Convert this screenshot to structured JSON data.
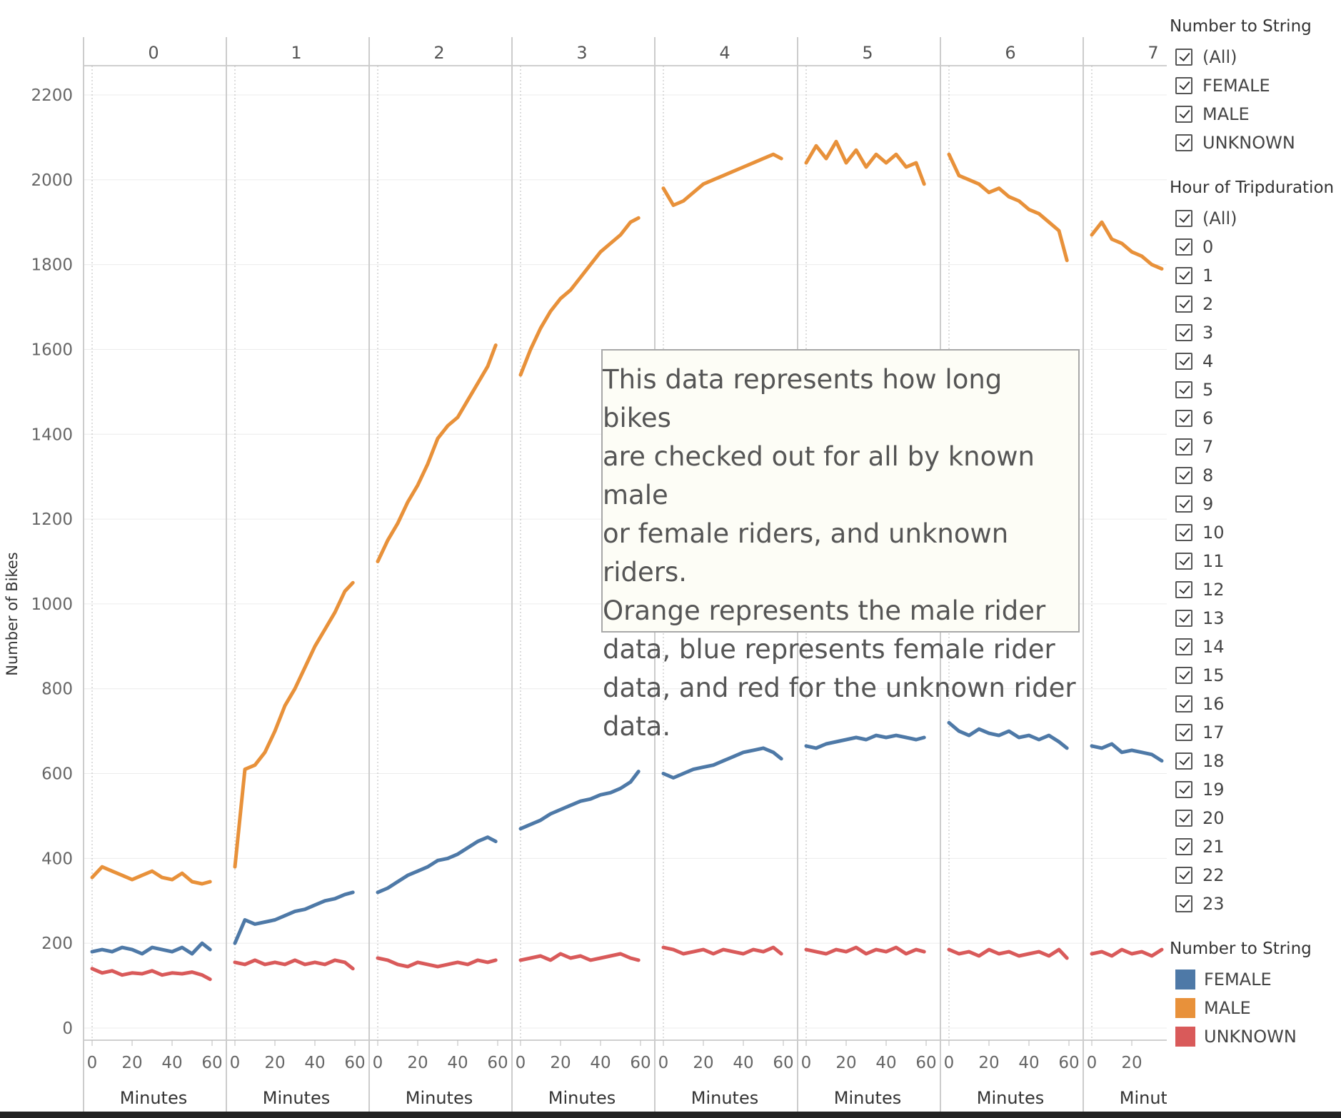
{
  "chart_data": {
    "type": "line",
    "ylabel": "Number of Bikes",
    "xlabel": "Minutes",
    "ylim": [
      0,
      2300
    ],
    "y_ticks": [
      0,
      200,
      400,
      600,
      800,
      1000,
      1200,
      1400,
      1600,
      1800,
      2000,
      2200
    ],
    "x_ticks": [
      0,
      20,
      40,
      60
    ],
    "facet_labels": [
      "0",
      "1",
      "2",
      "3",
      "4",
      "5",
      "6",
      "7"
    ],
    "x_minutes": [
      0,
      5,
      10,
      15,
      20,
      25,
      30,
      35,
      40,
      45,
      50,
      55,
      59
    ],
    "series": [
      {
        "name": "MALE",
        "color": "#E8913A",
        "values_by_hour": [
          [
            355,
            380,
            370,
            360,
            350,
            360,
            370,
            355,
            350,
            365,
            345,
            340,
            345
          ],
          [
            380,
            610,
            620,
            650,
            700,
            760,
            800,
            850,
            900,
            940,
            980,
            1030,
            1050
          ],
          [
            1100,
            1150,
            1190,
            1240,
            1280,
            1330,
            1390,
            1420,
            1440,
            1480,
            1520,
            1560,
            1610
          ],
          [
            1540,
            1600,
            1650,
            1690,
            1720,
            1740,
            1770,
            1800,
            1830,
            1850,
            1870,
            1900,
            1910
          ],
          [
            1980,
            1940,
            1950,
            1970,
            1990,
            2000,
            2010,
            2020,
            2030,
            2040,
            2050,
            2060,
            2050
          ],
          [
            2040,
            2080,
            2050,
            2090,
            2040,
            2070,
            2030,
            2060,
            2040,
            2060,
            2030,
            2040,
            1990
          ],
          [
            2060,
            2010,
            2000,
            1990,
            1970,
            1980,
            1960,
            1950,
            1930,
            1920,
            1900,
            1880,
            1810
          ],
          [
            1870,
            1900,
            1860,
            1850,
            1830,
            1820,
            1800,
            1790
          ]
        ]
      },
      {
        "name": "FEMALE",
        "color": "#4E79A7",
        "values_by_hour": [
          [
            180,
            185,
            180,
            190,
            185,
            175,
            190,
            185,
            180,
            190,
            175,
            200,
            185
          ],
          [
            200,
            255,
            245,
            250,
            255,
            265,
            275,
            280,
            290,
            300,
            305,
            315,
            320
          ],
          [
            320,
            330,
            345,
            360,
            370,
            380,
            395,
            400,
            410,
            425,
            440,
            450,
            440
          ],
          [
            470,
            480,
            490,
            505,
            515,
            525,
            535,
            540,
            550,
            555,
            565,
            580,
            605
          ],
          [
            600,
            590,
            600,
            610,
            615,
            620,
            630,
            640,
            650,
            655,
            660,
            650,
            635
          ],
          [
            665,
            660,
            670,
            675,
            680,
            685,
            680,
            690,
            685,
            690,
            685,
            680,
            685
          ],
          [
            720,
            700,
            690,
            705,
            695,
            690,
            700,
            685,
            690,
            680,
            690,
            675,
            660
          ],
          [
            665,
            660,
            670,
            650,
            655,
            650,
            645,
            630
          ]
        ]
      },
      {
        "name": "UNKNOWN",
        "color": "#D95A5A",
        "values_by_hour": [
          [
            140,
            130,
            135,
            125,
            130,
            128,
            135,
            125,
            130,
            128,
            132,
            125,
            115
          ],
          [
            155,
            150,
            160,
            150,
            155,
            150,
            160,
            150,
            155,
            150,
            160,
            155,
            140
          ],
          [
            165,
            160,
            150,
            145,
            155,
            150,
            145,
            150,
            155,
            150,
            160,
            155,
            160
          ],
          [
            160,
            165,
            170,
            160,
            175,
            165,
            170,
            160,
            165,
            170,
            175,
            165,
            160
          ],
          [
            190,
            185,
            175,
            180,
            185,
            175,
            185,
            180,
            175,
            185,
            180,
            190,
            175
          ],
          [
            185,
            180,
            175,
            185,
            180,
            190,
            175,
            185,
            180,
            190,
            175,
            185,
            180
          ],
          [
            185,
            175,
            180,
            170,
            185,
            175,
            180,
            170,
            175,
            180,
            170,
            185,
            165
          ],
          [
            175,
            180,
            170,
            185,
            175,
            180,
            170,
            185
          ]
        ]
      }
    ]
  },
  "annotation": {
    "lines": [
      "This data represents how long bikes",
      "are checked out for all by known male",
      "or female riders, and unknown riders.",
      "Orange represents the male rider",
      "data, blue represents female rider",
      "data, and red for the unknown rider",
      "data."
    ]
  },
  "filters": {
    "gender": {
      "title": "Number to String",
      "items": [
        "(All)",
        "FEMALE",
        "MALE",
        "UNKNOWN"
      ]
    },
    "hour": {
      "title": "Hour of Tripduration",
      "items": [
        "(All)",
        "0",
        "1",
        "2",
        "3",
        "4",
        "5",
        "6",
        "7",
        "8",
        "9",
        "10",
        "11",
        "12",
        "13",
        "14",
        "15",
        "16",
        "17",
        "18",
        "19",
        "20",
        "21",
        "22",
        "23"
      ]
    }
  },
  "color_legend": {
    "title": "Number to String",
    "items": [
      {
        "label": "FEMALE",
        "color": "#4E79A7"
      },
      {
        "label": "MALE",
        "color": "#E8913A"
      },
      {
        "label": "UNKNOWN",
        "color": "#D95A5A"
      }
    ]
  }
}
